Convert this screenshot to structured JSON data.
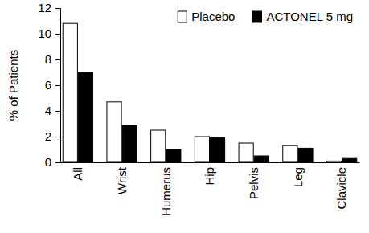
{
  "chart_data": {
    "type": "bar",
    "y_label": "% of Patients",
    "categories": [
      "All",
      "Wrist",
      "Humerus",
      "Hip",
      "Pelvis",
      "Leg",
      "Clavicle"
    ],
    "series": [
      {
        "name": "Placebo",
        "color": "#ffffff",
        "values": [
          10.8,
          4.7,
          2.5,
          2.0,
          1.5,
          1.3,
          0.1
        ]
      },
      {
        "name": "ACTONEL 5 mg",
        "color": "#000000",
        "values": [
          7.0,
          2.9,
          1.0,
          1.9,
          0.5,
          1.1,
          0.3
        ]
      }
    ],
    "ylim": [
      0,
      12
    ],
    "yticks": [
      0,
      2,
      4,
      6,
      8,
      10,
      12
    ],
    "grid": false,
    "legend": "upper right"
  }
}
